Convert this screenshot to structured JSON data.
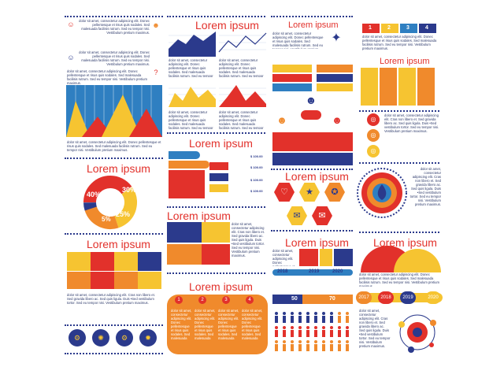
{
  "title_text": "Lorem ipsum",
  "body_text": "dolor sit amet, consectetur adipiscing elit. Donec pellentesque et risus quis sodales. Sed malesuada facilisis rutrum. Sed eu tempor nisi. Vestibulum pretium maximus.",
  "body_text_long": "dolor sit amet, consectetur adipiscing elit. Cras non libero et. Sed gravida libero ac. Sed quis ligula. Duis •Sed vestibulum tortor. Sed eu tempor nisi. Vestibulum pretium maximus.",
  "donut": {
    "p1": "40%",
    "p2": "30%",
    "p3": "25%",
    "p4": "5%"
  },
  "years_a": [
    "2018",
    "2019",
    "2020"
  ],
  "years_b": [
    "2017",
    "2018",
    "2019",
    "2020"
  ],
  "bar_labels": {
    "a": "50",
    "b": "70"
  },
  "tabs": [
    "1",
    "2",
    "3",
    "4"
  ],
  "money": [
    "$ 100.00",
    "$ 100.00",
    "$ 100.00",
    "$ 100.00"
  ],
  "colors": {
    "navy": "#2b3a8c",
    "red": "#e2312b",
    "yellow": "#f6c431",
    "blue": "#2f7fc1",
    "orange": "#f08a2c",
    "teal": "#4aa3d8"
  }
}
